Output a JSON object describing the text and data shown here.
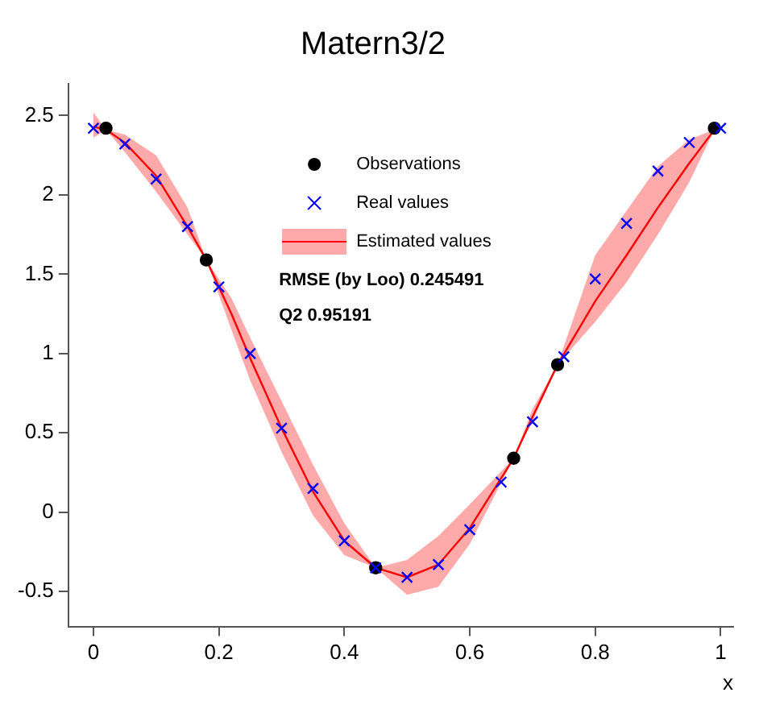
{
  "chart_data": {
    "type": "line",
    "title": "Matern3/2",
    "xlabel": "x",
    "xlim": [
      -0.04,
      1.02
    ],
    "ylim": [
      -0.72,
      2.7
    ],
    "xticks": [
      0,
      0.2,
      0.4,
      0.6,
      0.8,
      1
    ],
    "yticks": [
      -0.5,
      0,
      0.5,
      1,
      1.5,
      2,
      2.5
    ],
    "grid": false,
    "legend": "top",
    "annotations": [
      "RMSE (by Loo) 0.245491",
      "Q2 0.95191"
    ],
    "series": [
      {
        "name": "Estimated values",
        "color": "#ff0000",
        "line_style": "solid",
        "marker": "none",
        "x": [
          0,
          0.02,
          0.05,
          0.1,
          0.15,
          0.18,
          0.22,
          0.25,
          0.3,
          0.35,
          0.4,
          0.45,
          0.5,
          0.55,
          0.6,
          0.67,
          0.7,
          0.74,
          0.8,
          0.85,
          0.9,
          0.95,
          0.99
        ],
        "values": [
          2.43,
          2.41,
          2.33,
          2.12,
          1.8,
          1.59,
          1.25,
          0.97,
          0.53,
          0.13,
          -0.18,
          -0.35,
          -0.41,
          -0.33,
          -0.1,
          0.34,
          0.6,
          0.93,
          1.33,
          1.62,
          1.92,
          2.2,
          2.41
        ],
        "lower": [
          2.36,
          2.41,
          2.27,
          2.02,
          1.75,
          1.59,
          1.15,
          0.83,
          0.38,
          -0.02,
          -0.27,
          -0.35,
          -0.52,
          -0.47,
          -0.2,
          0.34,
          0.57,
          0.93,
          1.2,
          1.45,
          1.75,
          2.08,
          2.41
        ],
        "upper": [
          2.52,
          2.41,
          2.38,
          2.25,
          1.92,
          1.59,
          1.35,
          1.1,
          0.7,
          0.3,
          -0.07,
          -0.35,
          -0.3,
          -0.15,
          0.05,
          0.34,
          0.65,
          0.93,
          1.62,
          1.9,
          2.18,
          2.35,
          2.41
        ]
      },
      {
        "name": "Real values",
        "type": "scatter",
        "color": "#0000ff",
        "marker": "cross",
        "x": [
          0,
          0.05,
          0.1,
          0.15,
          0.2,
          0.25,
          0.3,
          0.35,
          0.4,
          0.45,
          0.5,
          0.55,
          0.6,
          0.65,
          0.7,
          0.75,
          0.8,
          0.85,
          0.9,
          0.95,
          1
        ],
        "values": [
          2.42,
          2.32,
          2.1,
          1.8,
          1.42,
          1.0,
          0.53,
          0.15,
          -0.18,
          -0.35,
          -0.41,
          -0.33,
          -0.11,
          0.19,
          0.57,
          0.98,
          1.47,
          1.82,
          2.15,
          2.33,
          2.42
        ]
      },
      {
        "name": "Observations",
        "type": "scatter",
        "color": "#000000",
        "marker": "circle",
        "x": [
          0.02,
          0.18,
          0.45,
          0.67,
          0.74,
          0.99
        ],
        "values": [
          2.42,
          1.59,
          -0.35,
          0.34,
          0.93,
          2.42
        ]
      }
    ]
  }
}
